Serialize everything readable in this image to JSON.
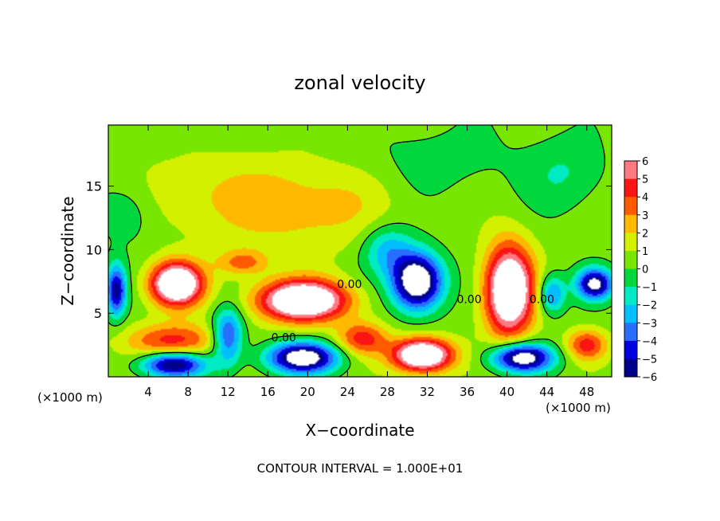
{
  "chart_data": {
    "type": "heatmap",
    "title": "zonal velocity",
    "xlabel": "X−coordinate",
    "ylabel": "Z−coordinate",
    "x_unit_left": "(×1000 m)",
    "x_unit_right": "(×1000 m)",
    "footer": "CONTOUR INTERVAL = 1.000E+01",
    "xlim": [
      0,
      50.5
    ],
    "ylim": [
      0,
      19.8
    ],
    "x_ticks": [
      4,
      8,
      12,
      16,
      20,
      24,
      28,
      32,
      36,
      40,
      44,
      48
    ],
    "y_ticks": [
      5,
      10,
      15
    ],
    "x_tick_labels": [
      "4",
      "8",
      "12",
      "16",
      "20",
      "24",
      "28",
      "32",
      "36",
      "40",
      "44",
      "48"
    ],
    "y_tick_labels": [
      "5",
      "10",
      "15"
    ],
    "colorbar": {
      "ticks": [
        6,
        5,
        4,
        3,
        2,
        1,
        0,
        -1,
        -2,
        -3,
        -4,
        -5,
        -6
      ],
      "tick_labels": [
        "6",
        "5",
        "4",
        "3",
        "2",
        "1",
        "0",
        "−1",
        "−2",
        "−3",
        "−4",
        "−5",
        "−6"
      ],
      "range": [
        -6,
        6
      ]
    },
    "contour_labels": [
      {
        "text": "0.00",
        "x": 24.2,
        "y": 7.0
      },
      {
        "text": "0.00",
        "x": 17.6,
        "y": 2.8
      },
      {
        "text": "0.00",
        "x": 36.2,
        "y": 5.8
      },
      {
        "text": "0.00",
        "x": 43.5,
        "y": 5.8
      }
    ],
    "field_features": [
      {
        "sign": 1,
        "amp": 2.2,
        "x": 19,
        "y": 13.5,
        "sx": 9,
        "sy": 3.5
      },
      {
        "sign": 1,
        "amp": 1.0,
        "x": 8,
        "y": 14.5,
        "sx": 6,
        "sy": 3
      },
      {
        "sign": -1,
        "amp": 1.5,
        "x": 46,
        "y": 16,
        "sx": 4,
        "sy": 3
      },
      {
        "sign": -1,
        "amp": 1.5,
        "x": 2,
        "y": 13,
        "sx": 3,
        "sy": 2.5
      },
      {
        "sign": -1,
        "amp": 1.0,
        "x": 33,
        "y": 17,
        "sx": 8,
        "sy": 3
      },
      {
        "sign": 1,
        "amp": 9,
        "x": 6.8,
        "y": 7.3,
        "sx": 2.6,
        "sy": 1.7
      },
      {
        "sign": 1,
        "amp": 9,
        "x": 19.5,
        "y": 6.0,
        "sx": 4.5,
        "sy": 1.6
      },
      {
        "sign": -1,
        "amp": 9,
        "x": 31.0,
        "y": 7.5,
        "sx": 2.5,
        "sy": 2.2
      },
      {
        "sign": 1,
        "amp": 9,
        "x": 40.2,
        "y": 6.8,
        "sx": 2.4,
        "sy": 3.5
      },
      {
        "sign": -1,
        "amp": 7,
        "x": 6.5,
        "y": 1.0,
        "sx": 3.2,
        "sy": 1.0
      },
      {
        "sign": 1,
        "amp": 4,
        "x": 6.5,
        "y": 2.8,
        "sx": 4.5,
        "sy": 1.4
      },
      {
        "sign": -1,
        "amp": 5,
        "x": 12.0,
        "y": 3.2,
        "sx": 1.5,
        "sy": 2.2
      },
      {
        "sign": -1,
        "amp": 8,
        "x": 19.5,
        "y": 1.5,
        "sx": 3.5,
        "sy": 1.2
      },
      {
        "sign": 1,
        "amp": 9,
        "x": 31.5,
        "y": 1.7,
        "sx": 3.0,
        "sy": 1.3
      },
      {
        "sign": -1,
        "amp": 8,
        "x": 41.5,
        "y": 1.5,
        "sx": 3.0,
        "sy": 1.1
      },
      {
        "sign": -1,
        "amp": 7,
        "x": 48.8,
        "y": 7.3,
        "sx": 1.8,
        "sy": 1.2
      },
      {
        "sign": -1,
        "amp": 6,
        "x": 0.8,
        "y": 6.8,
        "sx": 1.0,
        "sy": 2.0
      },
      {
        "sign": 1,
        "amp": 3,
        "x": 13.5,
        "y": 9.0,
        "sx": 2.5,
        "sy": 1.0
      },
      {
        "sign": -1,
        "amp": 4,
        "x": 44.5,
        "y": 6.5,
        "sx": 1.3,
        "sy": 1.5
      },
      {
        "sign": 1,
        "amp": 4,
        "x": 48.0,
        "y": 2.5,
        "sx": 2.0,
        "sy": 1.2
      },
      {
        "sign": 1,
        "amp": 4,
        "x": 25.5,
        "y": 3.0,
        "sx": 2.5,
        "sy": 1.3
      },
      {
        "sign": -1,
        "amp": 3,
        "x": 28.0,
        "y": 10.0,
        "sx": 2.5,
        "sy": 2.0
      }
    ]
  }
}
